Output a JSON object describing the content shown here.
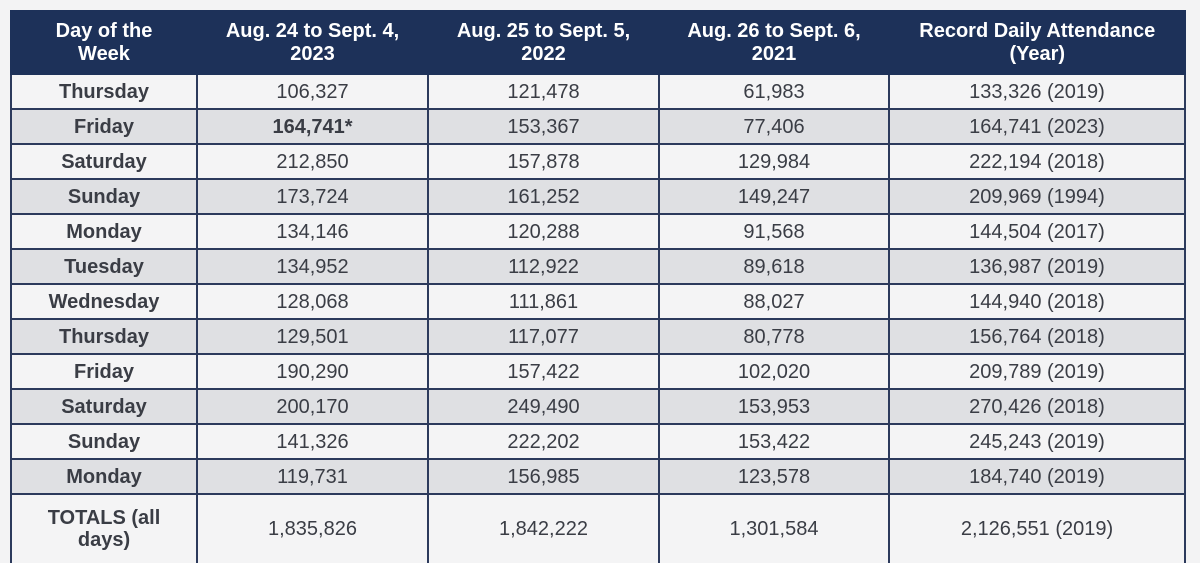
{
  "table": {
    "headers": [
      "Day of the Week",
      "Aug. 24 to Sept. 4, 2023",
      "Aug. 25 to Sept. 5, 2022",
      "Aug. 26 to Sept. 6, 2021",
      "Record Daily Attendance (Year)"
    ],
    "header_lines": [
      [
        "Day of the",
        "Week"
      ],
      [
        "Aug. 24 to Sept. 4,",
        "2023"
      ],
      [
        "Aug. 25 to Sept. 5,",
        "2022"
      ],
      [
        "Aug. 26 to Sept. 6,",
        "2021"
      ],
      [
        "Record Daily Attendance",
        "(Year)"
      ]
    ],
    "rows": [
      {
        "day": "Thursday",
        "y2023": "106,327",
        "y2022": "121,478",
        "y2021": "61,983",
        "record": "133,326 (2019)"
      },
      {
        "day": "Friday",
        "y2023": "164,741*",
        "y2022": "153,367",
        "y2021": "77,406",
        "record": "164,741 (2023)",
        "y2023_bold": true
      },
      {
        "day": "Saturday",
        "y2023": "212,850",
        "y2022": "157,878",
        "y2021": "129,984",
        "record": "222,194 (2018)"
      },
      {
        "day": "Sunday",
        "y2023": "173,724",
        "y2022": "161,252",
        "y2021": "149,247",
        "record": "209,969 (1994)"
      },
      {
        "day": "Monday",
        "y2023": "134,146",
        "y2022": "120,288",
        "y2021": "91,568",
        "record": "144,504 (2017)"
      },
      {
        "day": "Tuesday",
        "y2023": "134,952",
        "y2022": "112,922",
        "y2021": "89,618",
        "record": "136,987 (2019)"
      },
      {
        "day": "Wednesday",
        "y2023": "128,068",
        "y2022": "111,861",
        "y2021": "88,027",
        "record": "144,940 (2018)"
      },
      {
        "day": "Thursday",
        "y2023": "129,501",
        "y2022": "117,077",
        "y2021": "80,778",
        "record": "156,764 (2018)"
      },
      {
        "day": "Friday",
        "y2023": "190,290",
        "y2022": "157,422",
        "y2021": "102,020",
        "record": "209,789 (2019)"
      },
      {
        "day": "Saturday",
        "y2023": "200,170",
        "y2022": "249,490",
        "y2021": "153,953",
        "record": "270,426 (2018)"
      },
      {
        "day": "Sunday",
        "y2023": "141,326",
        "y2022": "222,202",
        "y2021": "153,422",
        "record": "245,243 (2019)"
      },
      {
        "day": "Monday",
        "y2023": "119,731",
        "y2022": "156,985",
        "y2021": "123,578",
        "record": "184,740 (2019)"
      }
    ],
    "totals": {
      "label_lines": [
        "TOTALS (all",
        "days)"
      ],
      "label": "TOTALS (all days)",
      "y2023": "1,835,826",
      "y2022": "1,842,222",
      "y2021": "1,301,584",
      "record": "2,126,551 (2019)"
    }
  },
  "colors": {
    "header_bg": "#1d3159",
    "header_text": "#ffffff",
    "row_light": "#f4f4f5",
    "row_dark": "#dfe0e3",
    "border": "#2c3a5c",
    "text": "#3a3d45"
  }
}
